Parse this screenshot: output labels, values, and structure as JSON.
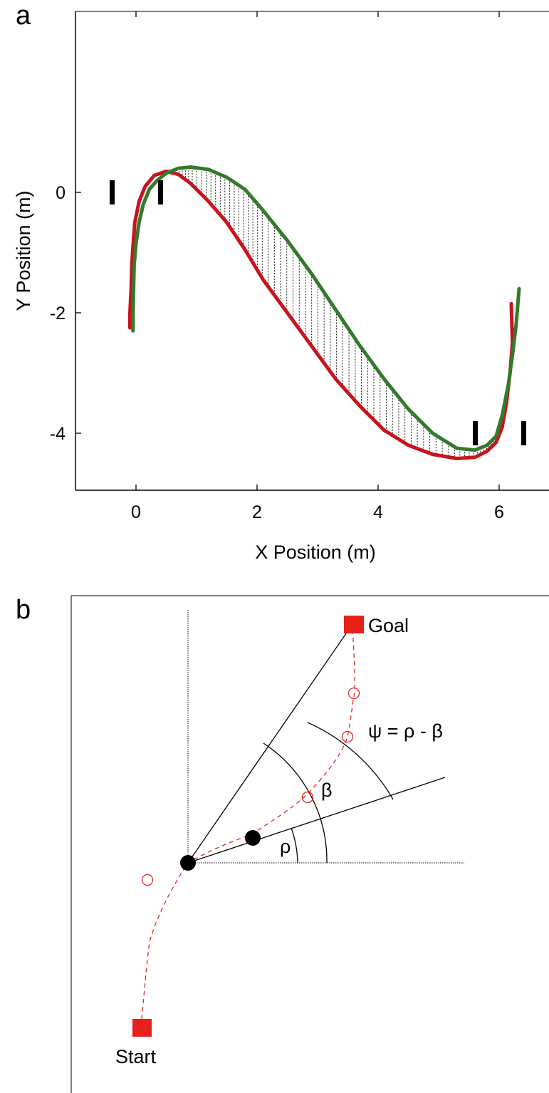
{
  "panels": {
    "a": {
      "label": "a"
    },
    "b": {
      "label": "b"
    }
  },
  "chart_data": [
    {
      "type": "line",
      "panel": "a",
      "xlabel": "X Position (m)",
      "ylabel": "Y Position (m)",
      "xlim": [
        -1,
        6.8
      ],
      "ylim": [
        -5,
        3
      ],
      "xticks": [
        0,
        2,
        4,
        6
      ],
      "yticks": [
        0,
        -2,
        -4
      ],
      "grid": false,
      "series": [
        {
          "color": "#c8141c",
          "x": [
            -0.1,
            -0.1,
            -0.08,
            -0.07,
            -0.05,
            -0.02,
            0.05,
            0.15,
            0.3,
            0.5,
            0.7,
            0.9,
            1.2,
            1.5,
            1.8,
            2.1,
            2.5,
            2.9,
            3.3,
            3.7,
            4.1,
            4.5,
            4.9,
            5.3,
            5.6,
            5.8,
            5.95,
            6.05,
            6.12,
            6.18,
            6.22,
            6.2
          ],
          "y": [
            -2.25,
            -2.0,
            -1.6,
            -1.2,
            -0.9,
            -0.5,
            -0.15,
            0.1,
            0.28,
            0.35,
            0.3,
            0.15,
            -0.15,
            -0.5,
            -0.95,
            -1.45,
            -2.0,
            -2.55,
            -3.1,
            -3.55,
            -3.95,
            -4.2,
            -4.35,
            -4.42,
            -4.4,
            -4.3,
            -4.15,
            -3.9,
            -3.5,
            -3.0,
            -2.5,
            -1.85
          ]
        },
        {
          "color": "#357a2c",
          "x": [
            -0.05,
            -0.05,
            -0.04,
            -0.03,
            0.0,
            0.05,
            0.12,
            0.22,
            0.35,
            0.5,
            0.7,
            0.9,
            1.2,
            1.5,
            1.8,
            2.1,
            2.5,
            2.9,
            3.3,
            3.7,
            4.1,
            4.5,
            4.9,
            5.3,
            5.6,
            5.8,
            5.95,
            6.05,
            6.15,
            6.22,
            6.28,
            6.33
          ],
          "y": [
            -2.3,
            -2.0,
            -1.6,
            -1.2,
            -0.85,
            -0.5,
            -0.2,
            0.05,
            0.2,
            0.32,
            0.4,
            0.42,
            0.38,
            0.25,
            0.05,
            -0.3,
            -0.8,
            -1.35,
            -1.95,
            -2.55,
            -3.1,
            -3.6,
            -4.0,
            -4.25,
            -4.28,
            -4.2,
            -4.05,
            -3.7,
            -3.2,
            -2.7,
            -2.2,
            -1.6
          ]
        }
      ],
      "markers_x": [
        -0.4,
        0.4,
        5.6,
        6.4
      ],
      "markers_y": [
        0,
        0,
        -4,
        -4
      ],
      "marker_symbol": "I"
    }
  ],
  "diagram": {
    "goal_label": "Goal",
    "start_label": "Start",
    "psi_label": "ψ = ρ - β",
    "beta_label": "β",
    "rho_label": "ρ"
  }
}
